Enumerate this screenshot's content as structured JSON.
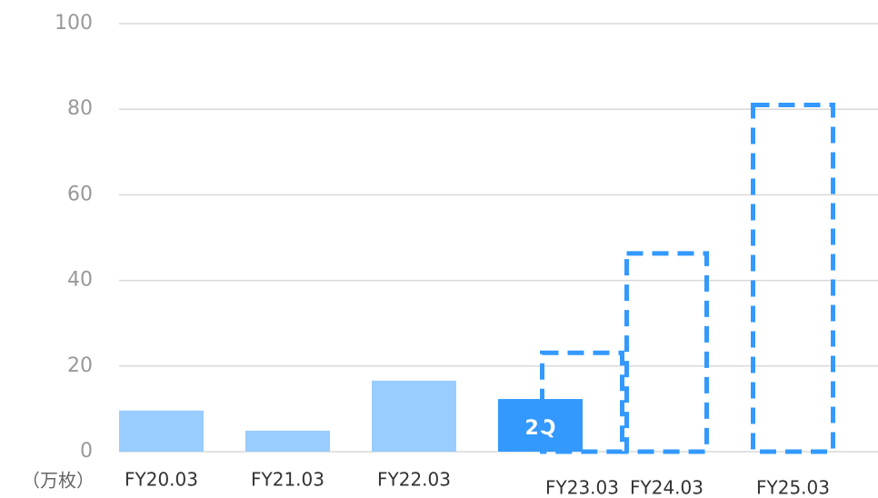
{
  "chart_data": {
    "type": "bar",
    "unit_label": "（万枚）",
    "categories": [
      "FY20.03",
      "FY21.03",
      "FY22.03",
      "FY23.03",
      "FY24.03",
      "FY25.03"
    ],
    "series": [
      {
        "color": "#99ccff",
        "values": [
          9.6,
          4.9,
          16.6,
          null,
          null,
          null
        ]
      },
      {
        "color": "#3399ff",
        "values": [
          null,
          null,
          null,
          12.3,
          null,
          null
        ],
        "annotation": "2Q"
      },
      {
        "color": "#3399ff",
        "style": "dashed",
        "values": [
          null,
          null,
          null,
          23.1,
          46.3,
          81
        ]
      }
    ],
    "ylim": [
      0,
      100
    ],
    "yticks": [
      0,
      20,
      40,
      60,
      80,
      100
    ],
    "grid": true
  }
}
